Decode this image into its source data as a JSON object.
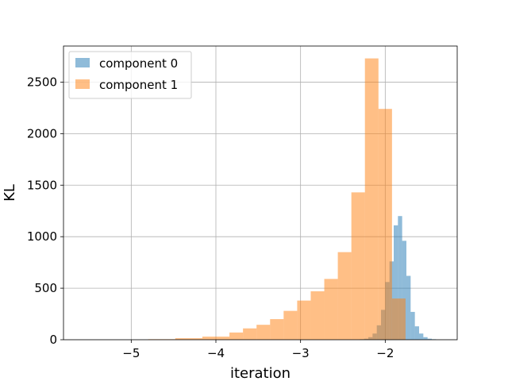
{
  "chart_data": {
    "type": "histogram",
    "xlabel": "iteration",
    "ylabel": "KL",
    "xlim": [
      -5.8,
      -1.15
    ],
    "ylim": [
      0,
      2850
    ],
    "xticks": [
      -5,
      -4,
      -3,
      -2
    ],
    "xtick_labels": [
      "−5",
      "−4",
      "−3",
      "−2"
    ],
    "yticks": [
      0,
      500,
      1000,
      1500,
      2000,
      2500
    ],
    "ytick_labels": [
      "0",
      "500",
      "1000",
      "1500",
      "2000",
      "2500"
    ],
    "grid": true,
    "legend_position": "top-left",
    "series": [
      {
        "name": "component 0",
        "color": "#1f77b4",
        "opacity": 0.5,
        "bins": [
          {
            "x0": -2.3,
            "x1": -2.25,
            "y": 5
          },
          {
            "x0": -2.25,
            "x1": -2.2,
            "y": 10
          },
          {
            "x0": -2.2,
            "x1": -2.15,
            "y": 25
          },
          {
            "x0": -2.15,
            "x1": -2.1,
            "y": 60
          },
          {
            "x0": -2.1,
            "x1": -2.05,
            "y": 140
          },
          {
            "x0": -2.05,
            "x1": -2.0,
            "y": 290
          },
          {
            "x0": -2.0,
            "x1": -1.95,
            "y": 560
          },
          {
            "x0": -1.95,
            "x1": -1.9,
            "y": 760
          },
          {
            "x0": -1.9,
            "x1": -1.85,
            "y": 1110
          },
          {
            "x0": -1.85,
            "x1": -1.8,
            "y": 1200
          },
          {
            "x0": -1.8,
            "x1": -1.75,
            "y": 960
          },
          {
            "x0": -1.75,
            "x1": -1.7,
            "y": 620
          },
          {
            "x0": -1.7,
            "x1": -1.65,
            "y": 270
          },
          {
            "x0": -1.65,
            "x1": -1.6,
            "y": 130
          },
          {
            "x0": -1.6,
            "x1": -1.55,
            "y": 60
          },
          {
            "x0": -1.55,
            "x1": -1.5,
            "y": 25
          },
          {
            "x0": -1.5,
            "x1": -1.45,
            "y": 10
          },
          {
            "x0": -1.45,
            "x1": -1.4,
            "y": 5
          }
        ]
      },
      {
        "name": "component 1",
        "color": "#ff7f0e",
        "opacity": 0.5,
        "bins": [
          {
            "x0": -4.8,
            "x1": -4.48,
            "y": 5
          },
          {
            "x0": -4.48,
            "x1": -4.16,
            "y": 15
          },
          {
            "x0": -4.16,
            "x1": -3.84,
            "y": 30
          },
          {
            "x0": -3.84,
            "x1": -3.68,
            "y": 70
          },
          {
            "x0": -3.68,
            "x1": -3.52,
            "y": 110
          },
          {
            "x0": -3.52,
            "x1": -3.36,
            "y": 145
          },
          {
            "x0": -3.36,
            "x1": -3.2,
            "y": 200
          },
          {
            "x0": -3.2,
            "x1": -3.04,
            "y": 280
          },
          {
            "x0": -3.04,
            "x1": -2.88,
            "y": 380
          },
          {
            "x0": -2.88,
            "x1": -2.72,
            "y": 470
          },
          {
            "x0": -2.72,
            "x1": -2.56,
            "y": 590
          },
          {
            "x0": -2.56,
            "x1": -2.4,
            "y": 850
          },
          {
            "x0": -2.4,
            "x1": -2.24,
            "y": 1430
          },
          {
            "x0": -2.24,
            "x1": -2.08,
            "y": 2730
          },
          {
            "x0": -2.08,
            "x1": -1.92,
            "y": 2240
          },
          {
            "x0": -1.92,
            "x1": -1.76,
            "y": 400
          }
        ]
      }
    ]
  }
}
